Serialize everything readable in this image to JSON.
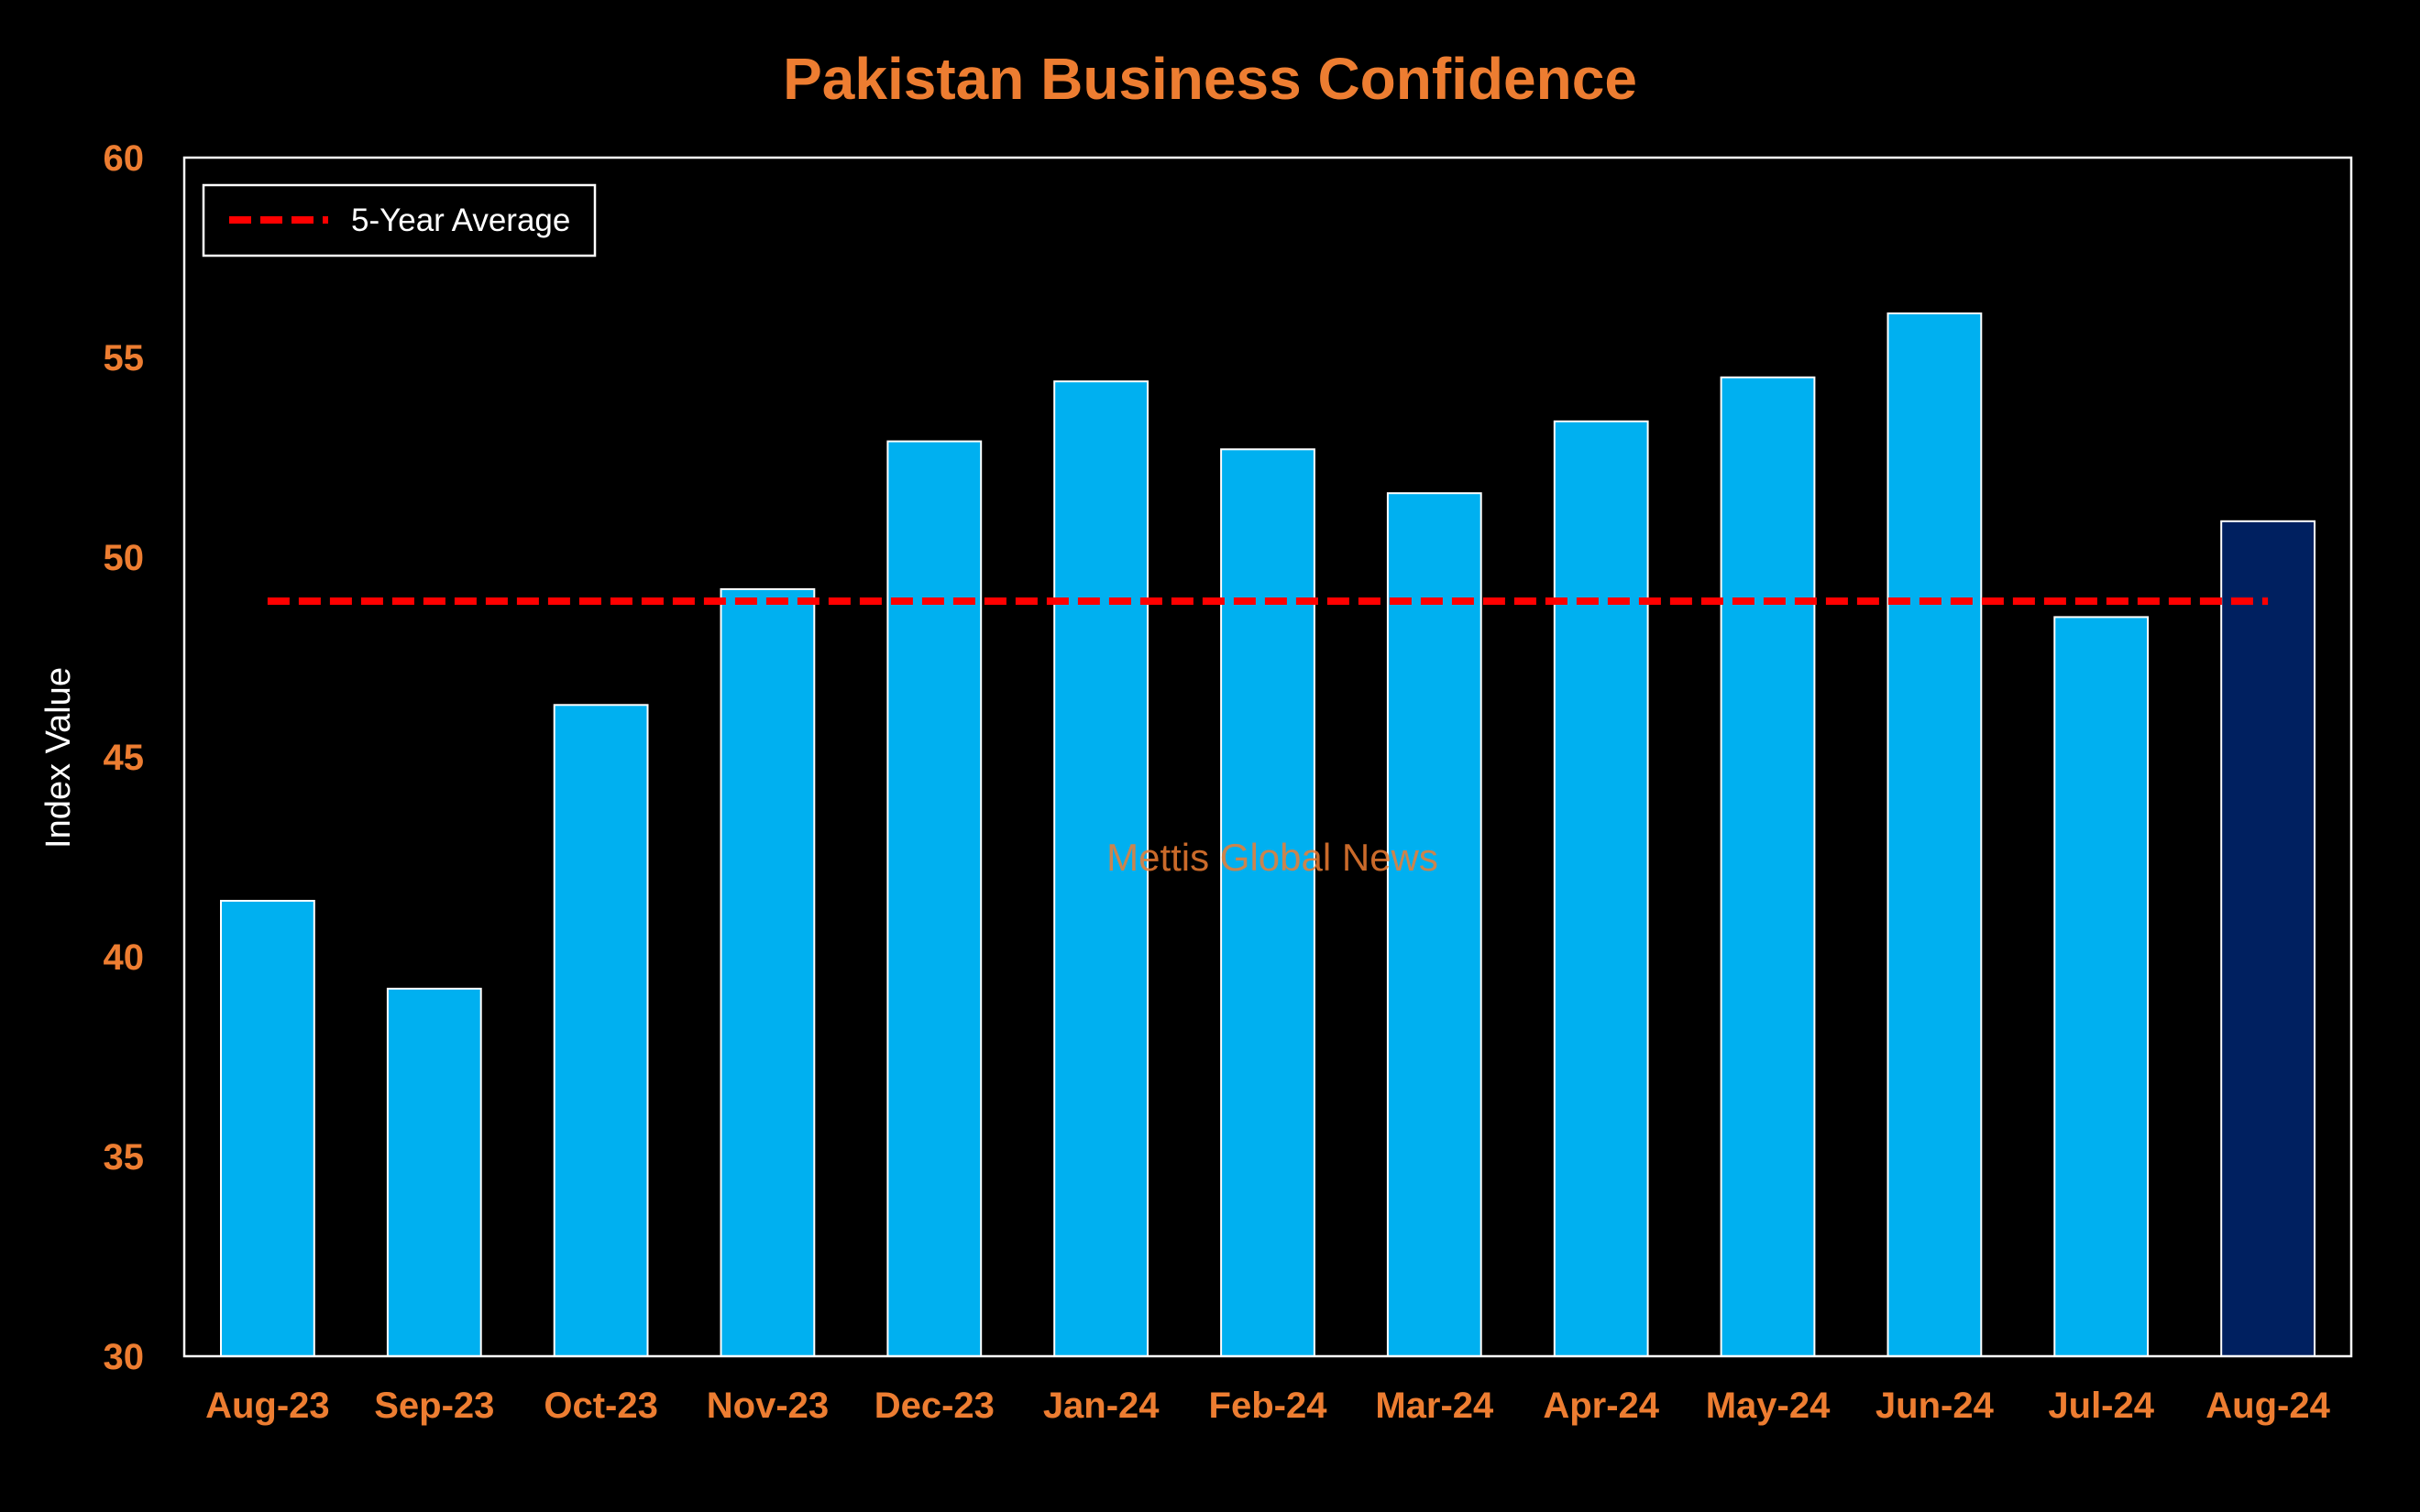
{
  "chart_data": {
    "type": "bar",
    "title": "Pakistan Business Confidence",
    "xlabel": "",
    "ylabel": "Index Value",
    "ylim": [
      30,
      60
    ],
    "yticks": [
      "30",
      "35",
      "40",
      "45",
      "50",
      "55",
      "60"
    ],
    "categories": [
      "Aug-23",
      "Sep-23",
      "Oct-23",
      "Nov-23",
      "Dec-23",
      "Jan-24",
      "Feb-24",
      "Mar-24",
      "Apr-24",
      "May-24",
      "Jun-24",
      "Jul-24",
      "Aug-24"
    ],
    "values": [
      41.4,
      39.2,
      46.3,
      49.2,
      52.9,
      54.4,
      52.7,
      51.6,
      53.4,
      54.5,
      56.1,
      48.5,
      50.9
    ],
    "highlight_index": 12,
    "reference_line": {
      "name": "5-Year Average",
      "value": 48.9,
      "style": "dashed"
    },
    "legend": {
      "position": "top-left",
      "entries": [
        "5-Year Average"
      ]
    },
    "grid": false,
    "colors": {
      "background": "#000000",
      "bar": "#00B0F0",
      "bar_highlight": "#002060",
      "bar_outline": "#FFFFFF",
      "reference_line": "#FF0000",
      "title": "#ED7D31",
      "tick_labels": "#ED7D31",
      "axis_label": "#FFFFFF",
      "plot_border": "#FFFFFF"
    }
  },
  "watermark": "Mettis Global News"
}
